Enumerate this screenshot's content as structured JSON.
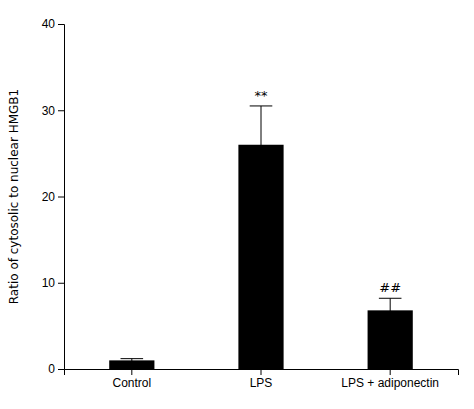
{
  "chart_data": {
    "type": "bar",
    "categories": [
      "Control",
      "LPS",
      "LPS + adiponectin"
    ],
    "values": [
      1.0,
      26.0,
      6.8
    ],
    "error_bars": [
      0.2,
      4.5,
      1.4
    ],
    "color": "#000000",
    "ylabel": "Ratio of cytosolic to nuclear HMGB1",
    "ylim": [
      0,
      40
    ],
    "yticks": [
      0,
      10,
      20,
      30,
      40
    ],
    "annotations": [
      {
        "text": "**",
        "category": "LPS"
      },
      {
        "text": "##",
        "category": "LPS + adiponectin"
      }
    ],
    "grid": false
  }
}
